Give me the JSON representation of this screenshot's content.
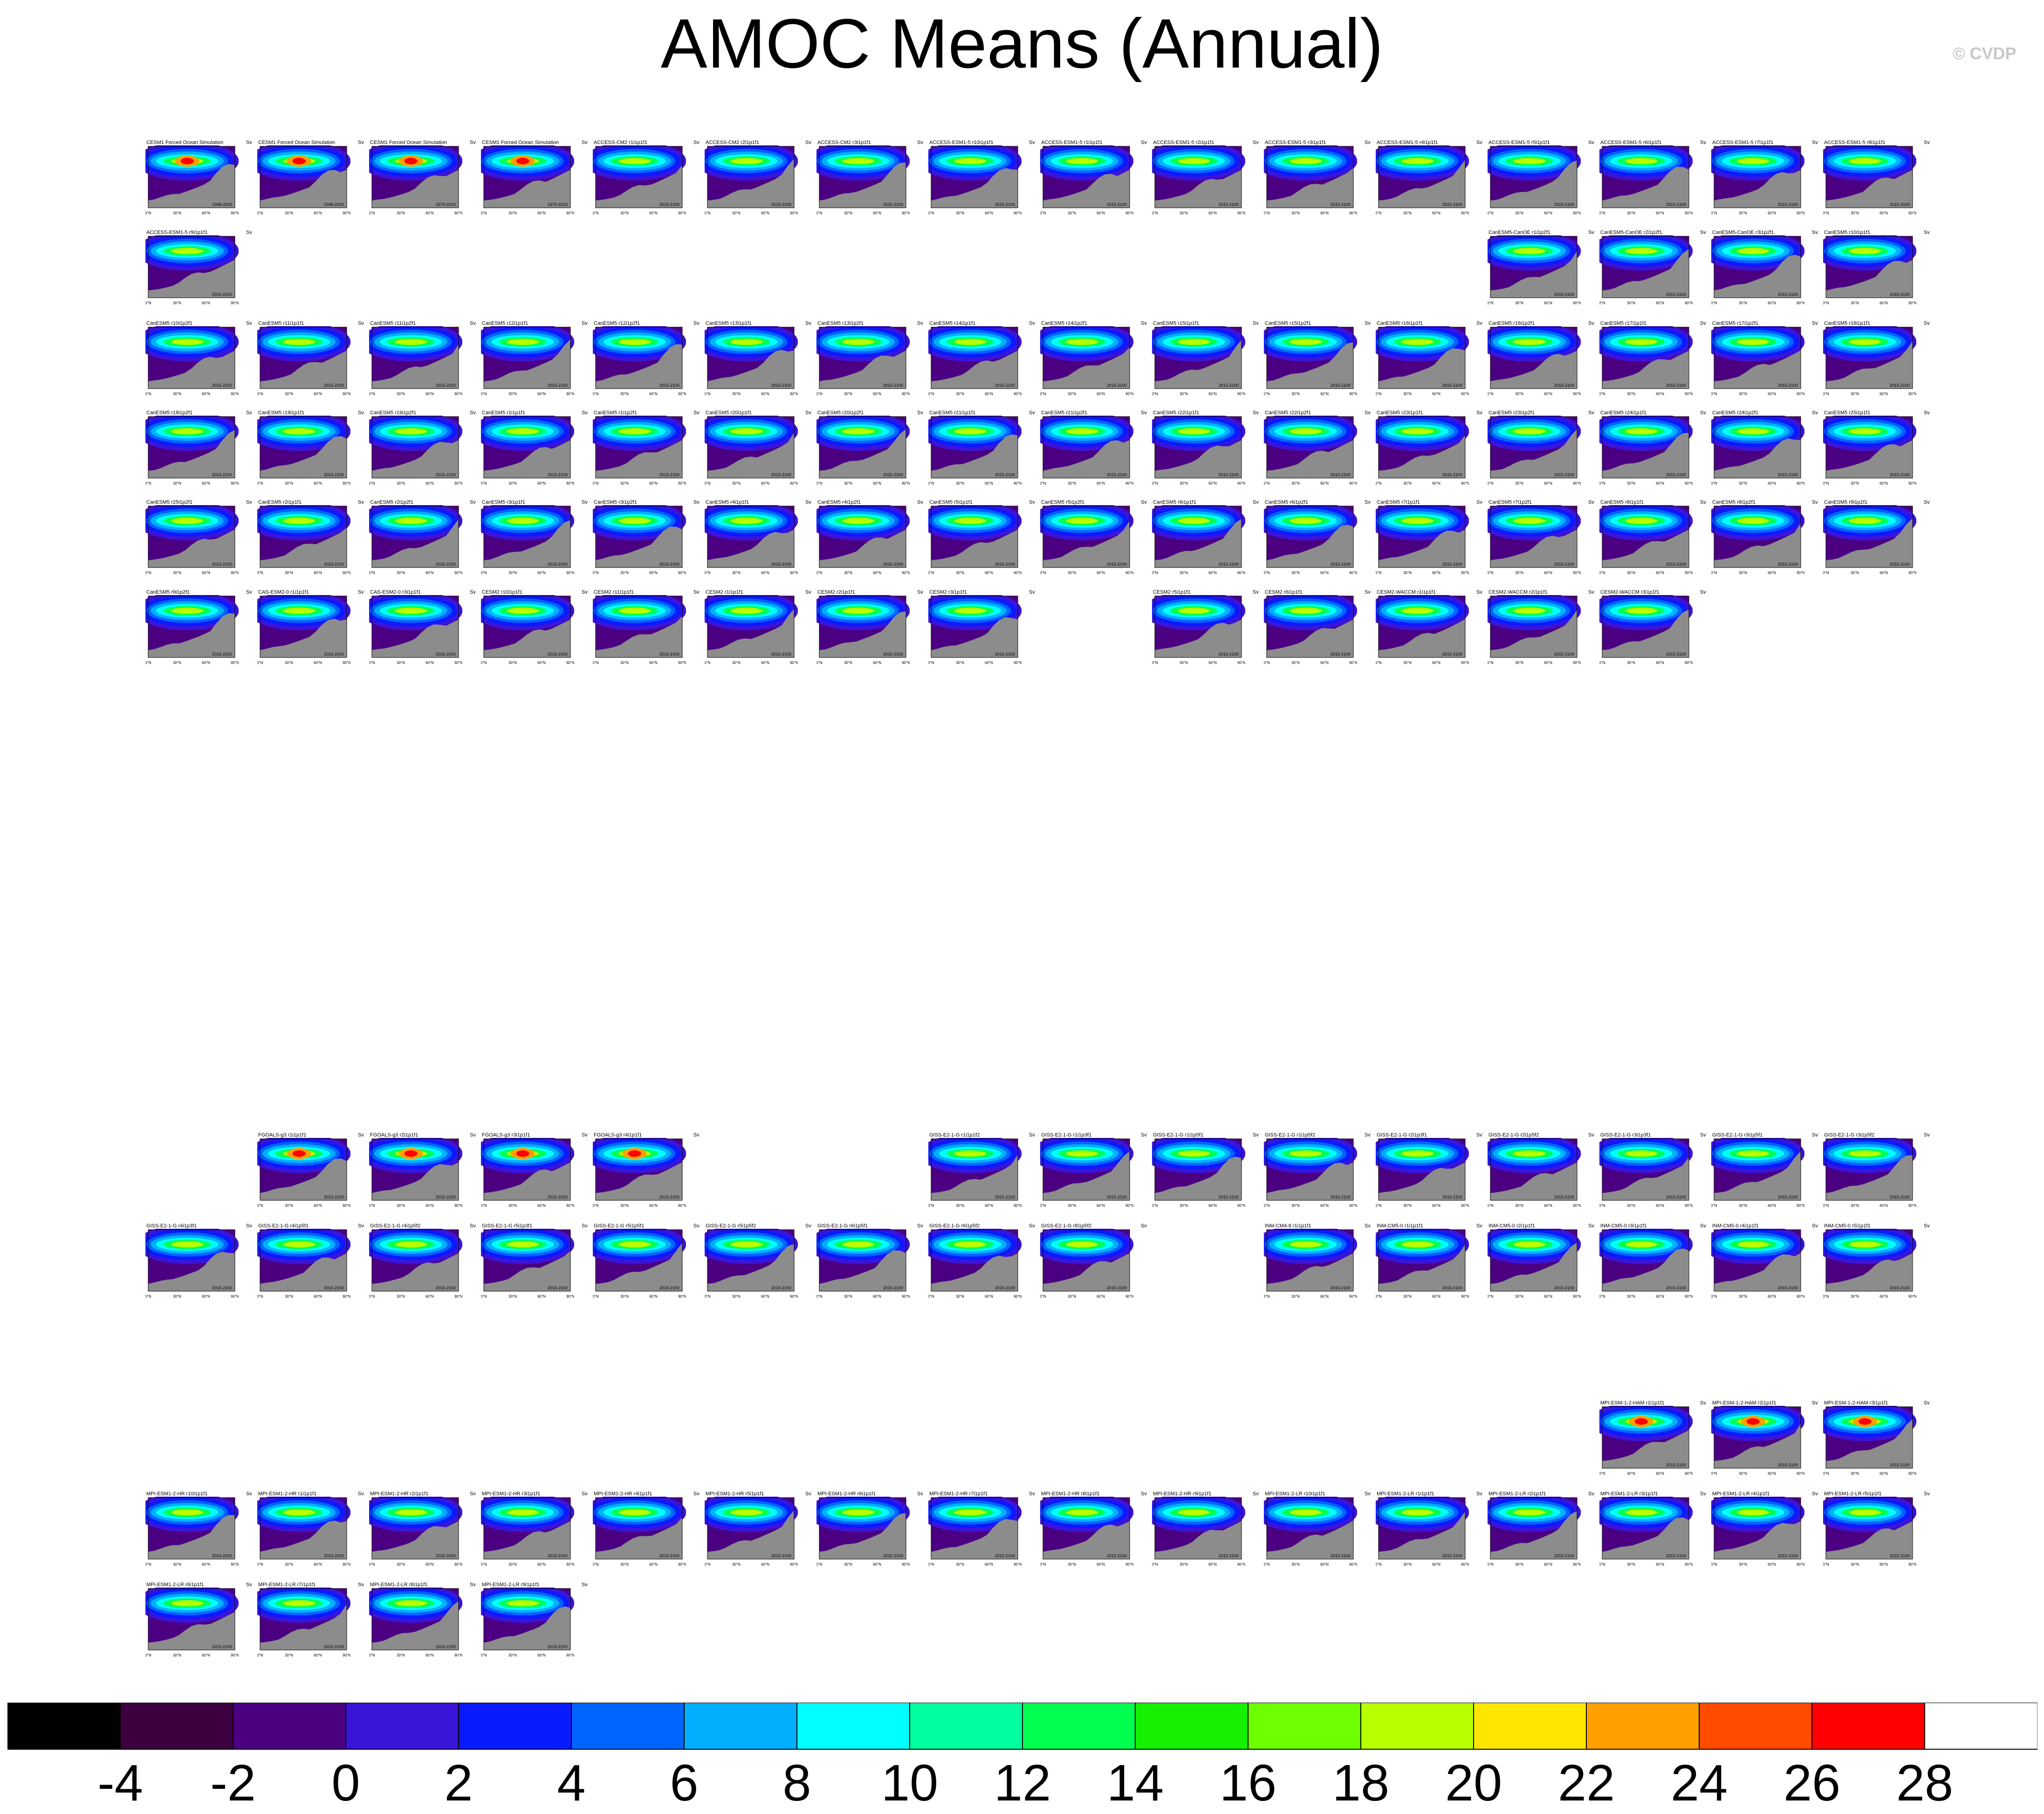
{
  "title": "AMOC Means (Annual)",
  "watermark": "© CVDP",
  "chart_data": {
    "type": "heatmap",
    "title": "AMOC Means (Annual)",
    "colorbar": {
      "colors": [
        "#000000",
        "#3c0040",
        "#4b0082",
        "#3a14d8",
        "#0a1aff",
        "#0064ff",
        "#00b0ff",
        "#00ffff",
        "#00ffa0",
        "#00ff50",
        "#14f000",
        "#6eff00",
        "#b8ff00",
        "#ffe600",
        "#ffa000",
        "#ff4b00",
        "#ff0000",
        "#ffffff"
      ],
      "ticks": [
        "-4",
        "-2",
        "0",
        "2",
        "4",
        "6",
        "8",
        "10",
        "12",
        "14",
        "16",
        "18",
        "20",
        "22",
        "24",
        "26",
        "28"
      ]
    },
    "panels": [
      {
        "label": "CESM1 Forced Ocean Simulation",
        "period": "1948-2015",
        "col": 0,
        "row": 0
      },
      {
        "label": "CESM1 Forced Ocean Simulation",
        "period": "1948-2015",
        "col": 1,
        "row": 0
      },
      {
        "label": "CESM1 Forced Ocean Simulation",
        "period": "1979-2015",
        "col": 2,
        "row": 0
      },
      {
        "label": "CESM1 Forced Ocean Simulation",
        "period": "1979-2015",
        "col": 3,
        "row": 0
      },
      {
        "label": "ACCESS-CM2 r1i1p1f1",
        "period": "2015-2100",
        "col": 4,
        "row": 0
      },
      {
        "label": "ACCESS-CM2 r2i1p1f1",
        "period": "2015-2100",
        "col": 5,
        "row": 0
      },
      {
        "label": "ACCESS-CM2 r3i1p1f1",
        "period": "2015-2100",
        "col": 6,
        "row": 0
      },
      {
        "label": "ACCESS-ESM1-5 r10i1p1f1",
        "period": "2015-2100",
        "col": 7,
        "row": 0
      },
      {
        "label": "ACCESS-ESM1-5 r1i1p1f1",
        "period": "2015-2100",
        "col": 8,
        "row": 0
      },
      {
        "label": "ACCESS-ESM1-5 r2i1p1f1",
        "period": "2015-2100",
        "col": 9,
        "row": 0
      },
      {
        "label": "ACCESS-ESM1-5 r3i1p1f1",
        "period": "2015-2100",
        "col": 10,
        "row": 0
      },
      {
        "label": "ACCESS-ESM1-5 r4i1p1f1",
        "period": "2015-2100",
        "col": 11,
        "row": 0
      },
      {
        "label": "ACCESS-ESM1-5 r5i1p1f1",
        "period": "2015-2100",
        "col": 12,
        "row": 0
      },
      {
        "label": "ACCESS-ESM1-5 r6i1p1f1",
        "period": "2015-2100",
        "col": 13,
        "row": 0
      },
      {
        "label": "ACCESS-ESM1-5 r7i1p1f1",
        "period": "2015-2100",
        "col": 14,
        "row": 0
      },
      {
        "label": "ACCESS-ESM1-5 r8i1p1f1",
        "period": "2015-2100",
        "col": 15,
        "row": 0
      },
      {
        "label": "ACCESS-ESM1-5 r9i1p1f1",
        "period": "2015-2100",
        "col": 0,
        "row": 1
      },
      {
        "label": "CanESM5-CanOE r1i1p2f1",
        "period": "2015-2100",
        "col": 12,
        "row": 1
      },
      {
        "label": "CanESM5-CanOE r2i1p2f1",
        "period": "2015-2100",
        "col": 13,
        "row": 1
      },
      {
        "label": "CanESM5-CanOE r3i1p2f1",
        "period": "2015-2100",
        "col": 14,
        "row": 1
      },
      {
        "label": "CanESM5 r10i1p1f1",
        "period": "2015-2100",
        "col": 15,
        "row": 1
      },
      {
        "label": "CanESM5 r10i1p2f1",
        "period": "2015-2100",
        "col": 0,
        "row": 2
      },
      {
        "label": "CanESM5 r11i1p1f1",
        "period": "2015-2100",
        "col": 1,
        "row": 2
      },
      {
        "label": "CanESM5 r11i1p2f1",
        "period": "2015-2100",
        "col": 2,
        "row": 2
      },
      {
        "label": "CanESM5 r12i1p1f1",
        "period": "2015-2100",
        "col": 3,
        "row": 2
      },
      {
        "label": "CanESM5 r12i1p2f1",
        "period": "2015-2100",
        "col": 4,
        "row": 2
      },
      {
        "label": "CanESM5 r13i1p1f1",
        "period": "2015-2100",
        "col": 5,
        "row": 2
      },
      {
        "label": "CanESM5 r13i1p2f1",
        "period": "2015-2100",
        "col": 6,
        "row": 2
      },
      {
        "label": "CanESM5 r14i1p1f1",
        "period": "2015-2100",
        "col": 7,
        "row": 2
      },
      {
        "label": "CanESM5 r14i1p2f1",
        "period": "2015-2100",
        "col": 8,
        "row": 2
      },
      {
        "label": "CanESM5 r15i1p1f1",
        "period": "2015-2100",
        "col": 9,
        "row": 2
      },
      {
        "label": "CanESM5 r15i1p2f1",
        "period": "2015-2100",
        "col": 10,
        "row": 2
      },
      {
        "label": "CanESM5 r16i1p1f1",
        "period": "2015-2100",
        "col": 11,
        "row": 2
      },
      {
        "label": "CanESM5 r16i1p2f1",
        "period": "2015-2100",
        "col": 12,
        "row": 2
      },
      {
        "label": "CanESM5 r17i1p1f1",
        "period": "2015-2100",
        "col": 13,
        "row": 2
      },
      {
        "label": "CanESM5 r17i1p2f1",
        "period": "2015-2100",
        "col": 14,
        "row": 2
      },
      {
        "label": "CanESM5 r18i1p1f1",
        "period": "2015-2100",
        "col": 15,
        "row": 2
      },
      {
        "label": "CanESM5 r18i1p2f1",
        "period": "2015-2100",
        "col": 0,
        "row": 3
      },
      {
        "label": "CanESM5 r19i1p1f1",
        "period": "2015-2100",
        "col": 1,
        "row": 3
      },
      {
        "label": "CanESM5 r19i1p2f1",
        "period": "2015-2100",
        "col": 2,
        "row": 3
      },
      {
        "label": "CanESM5 r1i1p1f1",
        "period": "2015-2100",
        "col": 3,
        "row": 3
      },
      {
        "label": "CanESM5 r1i1p2f1",
        "period": "2015-2100",
        "col": 4,
        "row": 3
      },
      {
        "label": "CanESM5 r20i1p1f1",
        "period": "2015-2100",
        "col": 5,
        "row": 3
      },
      {
        "label": "CanESM5 r20i1p2f1",
        "period": "2015-2100",
        "col": 6,
        "row": 3
      },
      {
        "label": "CanESM5 r21i1p1f1",
        "period": "2015-2100",
        "col": 7,
        "row": 3
      },
      {
        "label": "CanESM5 r21i1p2f1",
        "period": "2015-2100",
        "col": 8,
        "row": 3
      },
      {
        "label": "CanESM5 r22i1p1f1",
        "period": "2015-2100",
        "col": 9,
        "row": 3
      },
      {
        "label": "CanESM5 r22i1p2f1",
        "period": "2015-2100",
        "col": 10,
        "row": 3
      },
      {
        "label": "CanESM5 r23i1p1f1",
        "period": "2015-2100",
        "col": 11,
        "row": 3
      },
      {
        "label": "CanESM5 r23i1p2f1",
        "period": "2015-2100",
        "col": 12,
        "row": 3
      },
      {
        "label": "CanESM5 r24i1p1f1",
        "period": "2015-2100",
        "col": 13,
        "row": 3
      },
      {
        "label": "CanESM5 r24i1p2f1",
        "period": "2015-2100",
        "col": 14,
        "row": 3
      },
      {
        "label": "CanESM5 r25i1p1f1",
        "period": "2015-2100",
        "col": 15,
        "row": 3
      },
      {
        "label": "CanESM5 r25i1p2f1",
        "period": "2015-2100",
        "col": 0,
        "row": 4
      },
      {
        "label": "CanESM5 r2i1p1f1",
        "period": "2015-2100",
        "col": 1,
        "row": 4
      },
      {
        "label": "CanESM5 r2i1p2f1",
        "period": "2015-2100",
        "col": 2,
        "row": 4
      },
      {
        "label": "CanESM5 r3i1p1f1",
        "period": "2015-2100",
        "col": 3,
        "row": 4
      },
      {
        "label": "CanESM5 r3i1p2f1",
        "period": "2015-2100",
        "col": 4,
        "row": 4
      },
      {
        "label": "CanESM5 r4i1p1f1",
        "period": "2015-2100",
        "col": 5,
        "row": 4
      },
      {
        "label": "CanESM5 r4i1p2f1",
        "period": "2015-2100",
        "col": 6,
        "row": 4
      },
      {
        "label": "CanESM5 r5i1p1f1",
        "period": "2015-2100",
        "col": 7,
        "row": 4
      },
      {
        "label": "CanESM5 r5i1p2f1",
        "period": "2015-2100",
        "col": 8,
        "row": 4
      },
      {
        "label": "CanESM5 r6i1p1f1",
        "period": "2015-2100",
        "col": 9,
        "row": 4
      },
      {
        "label": "CanESM5 r6i1p2f1",
        "period": "2015-2100",
        "col": 10,
        "row": 4
      },
      {
        "label": "CanESM5 r7i1p1f1",
        "period": "2015-2100",
        "col": 11,
        "row": 4
      },
      {
        "label": "CanESM5 r7i1p2f1",
        "period": "2015-2100",
        "col": 12,
        "row": 4
      },
      {
        "label": "CanESM5 r8i1p1f1",
        "period": "2015-2100",
        "col": 13,
        "row": 4
      },
      {
        "label": "CanESM5 r8i1p2f1",
        "period": "2015-2100",
        "col": 14,
        "row": 4
      },
      {
        "label": "CanESM5 r9i1p1f1",
        "period": "2015-2100",
        "col": 15,
        "row": 4
      },
      {
        "label": "CanESM5 r9i1p2f1",
        "period": "2015-2100",
        "col": 0,
        "row": 5
      },
      {
        "label": "CAS-ESM2-0 r1i1p1f1",
        "period": "2015-2100",
        "col": 1,
        "row": 5
      },
      {
        "label": "CAS-ESM2-0 r3i1p1f1",
        "period": "2015-2100",
        "col": 2,
        "row": 5
      },
      {
        "label": "CESM2 r10i1p1f1",
        "period": "2015-2100",
        "col": 3,
        "row": 5
      },
      {
        "label": "CESM2 r11i1p1f1",
        "period": "2015-2100",
        "col": 4,
        "row": 5
      },
      {
        "label": "CESM2 r1i1p1f1",
        "period": "2015-2100",
        "col": 5,
        "row": 5
      },
      {
        "label": "CESM2 r2i1p1f1",
        "period": "2015-2100",
        "col": 6,
        "row": 5
      },
      {
        "label": "CESM2 r3i1p1f1",
        "period": "2015-2100",
        "col": 7,
        "row": 5
      },
      {
        "label": "CESM2 r5i1p1f1",
        "period": "2015-2100",
        "col": 9,
        "row": 5
      },
      {
        "label": "CESM2 r6i1p1f1",
        "period": "2015-2100",
        "col": 10,
        "row": 5
      },
      {
        "label": "CESM2-WACCM r1i1p1f1",
        "period": "2015-2100",
        "col": 11,
        "row": 5
      },
      {
        "label": "CESM2-WACCM r2i1p1f1",
        "period": "2015-2100",
        "col": 12,
        "row": 5
      },
      {
        "label": "CESM2-WACCM r3i1p1f1",
        "period": "2015-2100",
        "col": 13,
        "row": 5
      },
      {
        "label": "FGOALS-g3 r1i1p1f1",
        "period": "2015-2100",
        "col": 1,
        "row": 6
      },
      {
        "label": "FGOALS-g3 r2i1p1f1",
        "period": "2015-2100",
        "col": 2,
        "row": 6
      },
      {
        "label": "FGOALS-g3 r3i1p1f1",
        "period": "2015-2100",
        "col": 3,
        "row": 6
      },
      {
        "label": "FGOALS-g3 r4i1p1f1",
        "period": "2015-2100",
        "col": 4,
        "row": 6
      },
      {
        "label": "GISS-E2-1-G r1i1p1f2",
        "period": "2015-2100",
        "col": 7,
        "row": 6
      },
      {
        "label": "GISS-E2-1-G r1i1p3f1",
        "period": "2015-2100",
        "col": 8,
        "row": 6
      },
      {
        "label": "GISS-E2-1-G r1i1p5f1",
        "period": "2015-2100",
        "col": 9,
        "row": 6
      },
      {
        "label": "GISS-E2-1-G r1i1p5f2",
        "period": "2015-2100",
        "col": 10,
        "row": 6
      },
      {
        "label": "GISS-E2-1-G r2i1p3f1",
        "period": "2015-2100",
        "col": 11,
        "row": 6
      },
      {
        "label": "GISS-E2-1-G r2i1p5f2",
        "period": "2015-2100",
        "col": 12,
        "row": 6
      },
      {
        "label": "GISS-E2-1-G r3i1p3f1",
        "period": "2015-2100",
        "col": 13,
        "row": 6
      },
      {
        "label": "GISS-E2-1-G r3i1p5f1",
        "period": "2015-2100",
        "col": 14,
        "row": 6
      },
      {
        "label": "GISS-E2-1-G r3i1p5f2",
        "period": "2015-2100",
        "col": 15,
        "row": 6
      },
      {
        "label": "GISS-E2-1-G r4i1p3f1",
        "period": "2015-2100",
        "col": 0,
        "row": 7
      },
      {
        "label": "GISS-E2-1-G r4i1p5f1",
        "period": "2015-2100",
        "col": 1,
        "row": 7
      },
      {
        "label": "GISS-E2-1-G r4i1p5f2",
        "period": "2015-2100",
        "col": 2,
        "row": 7
      },
      {
        "label": "GISS-E2-1-G r5i1p3f1",
        "period": "2015-2100",
        "col": 3,
        "row": 7
      },
      {
        "label": "GISS-E2-1-G r5i1p5f1",
        "period": "2015-2100",
        "col": 4,
        "row": 7
      },
      {
        "label": "GISS-E2-1-G r5i1p5f2",
        "period": "2015-2100",
        "col": 5,
        "row": 7
      },
      {
        "label": "GISS-E2-1-G r6i1p5f1",
        "period": "2015-2100",
        "col": 6,
        "row": 7
      },
      {
        "label": "GISS-E2-1-G r6i1p5f2",
        "period": "2015-2100",
        "col": 7,
        "row": 7
      },
      {
        "label": "GISS-E2-1-G r8i1p5f2",
        "period": "2015-2100",
        "col": 8,
        "row": 7
      },
      {
        "label": "INM-CM4-8 r1i1p1f1",
        "period": "2015-2100",
        "col": 10,
        "row": 7
      },
      {
        "label": "INM-CM5-0 r1i1p1f1",
        "period": "2015-2100",
        "col": 11,
        "row": 7
      },
      {
        "label": "INM-CM5-0 r2i1p1f1",
        "period": "2015-2100",
        "col": 12,
        "row": 7
      },
      {
        "label": "INM-CM5-0 r3i1p1f1",
        "period": "2015-2100",
        "col": 13,
        "row": 7
      },
      {
        "label": "INM-CM5-0 r4i1p1f1",
        "period": "2015-2100",
        "col": 14,
        "row": 7
      },
      {
        "label": "INM-CM5-0 r5i1p1f1",
        "period": "2015-2100",
        "col": 15,
        "row": 7
      },
      {
        "label": "MPI-ESM-1-2-HAM r1i1p1f1",
        "period": "2015-2100",
        "col": 13,
        "row": 8
      },
      {
        "label": "MPI-ESM-1-2-HAM r2i1p1f1",
        "period": "2015-2100",
        "col": 14,
        "row": 8
      },
      {
        "label": "MPI-ESM-1-2-HAM r3i1p1f1",
        "period": "2015-2100",
        "col": 15,
        "row": 8
      },
      {
        "label": "MPI-ESM1-2-HR r10i1p1f1",
        "period": "2015-2100",
        "col": 0,
        "row": 9
      },
      {
        "label": "MPI-ESM1-2-HR r1i1p1f1",
        "period": "2015-2100",
        "col": 1,
        "row": 9
      },
      {
        "label": "MPI-ESM1-2-HR r2i1p1f1",
        "period": "2015-2100",
        "col": 2,
        "row": 9
      },
      {
        "label": "MPI-ESM1-2-HR r3i1p1f1",
        "period": "2015-2100",
        "col": 3,
        "row": 9
      },
      {
        "label": "MPI-ESM1-2-HR r4i1p1f1",
        "period": "2015-2100",
        "col": 4,
        "row": 9
      },
      {
        "label": "MPI-ESM1-2-HR r5i1p1f1",
        "period": "2015-2100",
        "col": 5,
        "row": 9
      },
      {
        "label": "MPI-ESM1-2-HR r6i1p1f1",
        "period": "2015-2100",
        "col": 6,
        "row": 9
      },
      {
        "label": "MPI-ESM1-2-HR r7i1p1f1",
        "period": "2015-2100",
        "col": 7,
        "row": 9
      },
      {
        "label": "MPI-ESM1-2-HR r8i1p1f1",
        "period": "2015-2100",
        "col": 8,
        "row": 9
      },
      {
        "label": "MPI-ESM1-2-HR r9i1p1f1",
        "period": "2015-2100",
        "col": 9,
        "row": 9
      },
      {
        "label": "MPI-ESM1-2-LR r10i1p1f1",
        "period": "2015-2100",
        "col": 10,
        "row": 9
      },
      {
        "label": "MPI-ESM1-2-LR r1i1p1f1",
        "period": "2015-2100",
        "col": 11,
        "row": 9
      },
      {
        "label": "MPI-ESM1-2-LR r2i1p1f1",
        "period": "2015-2100",
        "col": 12,
        "row": 9
      },
      {
        "label": "MPI-ESM1-2-LR r3i1p1f1",
        "period": "2015-2100",
        "col": 13,
        "row": 9
      },
      {
        "label": "MPI-ESM1-2-LR r4i1p1f1",
        "period": "2015-2100",
        "col": 14,
        "row": 9
      },
      {
        "label": "MPI-ESM1-2-LR r5i1p1f1",
        "period": "2015-2100",
        "col": 15,
        "row": 9
      },
      {
        "label": "MPI-ESM1-2-LR r6i1p1f1",
        "period": "2015-2100",
        "col": 0,
        "row": 10
      },
      {
        "label": "MPI-ESM1-2-LR r7i1p1f1",
        "period": "2015-2100",
        "col": 1,
        "row": 10
      },
      {
        "label": "MPI-ESM1-2-LR r8i1p1f1",
        "period": "2015-2100",
        "col": 2,
        "row": 10
      },
      {
        "label": "MPI-ESM1-2-LR r9i1p1f1",
        "period": "2015-2100",
        "col": 3,
        "row": 10
      }
    ],
    "panel_unit": "Sv",
    "x_ticks": [
      "0°N",
      "30°N",
      "60°N",
      "90°N"
    ],
    "y_label": "depth (km)",
    "y_ticks": [
      "0.0",
      "1.0",
      "2.0",
      "3.0",
      "4.0",
      "5.0"
    ]
  }
}
